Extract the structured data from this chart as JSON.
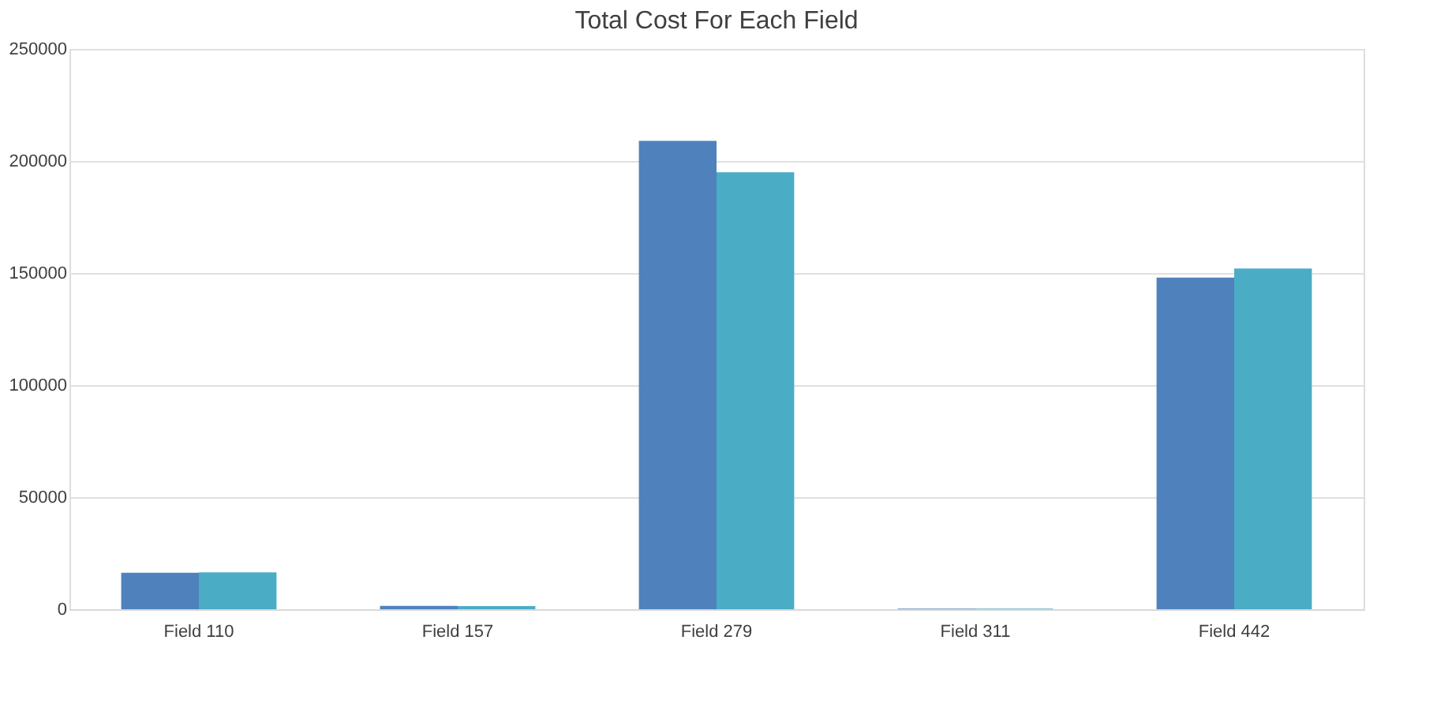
{
  "chart_data": {
    "type": "bar",
    "title": "Total Cost For Each Field",
    "categories": [
      "Field 110",
      "Field 157",
      "Field 279",
      "Field 311",
      "Field 442"
    ],
    "series": [
      {
        "color": "#4f81bd",
        "values": [
          16300,
          1500,
          209000,
          300,
          148000
        ]
      },
      {
        "color": "#4bacc6",
        "values": [
          16500,
          1400,
          195000,
          300,
          152000
        ]
      }
    ],
    "ylim": [
      0,
      250000
    ],
    "yticks": [
      0,
      50000,
      100000,
      150000,
      200000,
      250000
    ],
    "grid": "y"
  }
}
